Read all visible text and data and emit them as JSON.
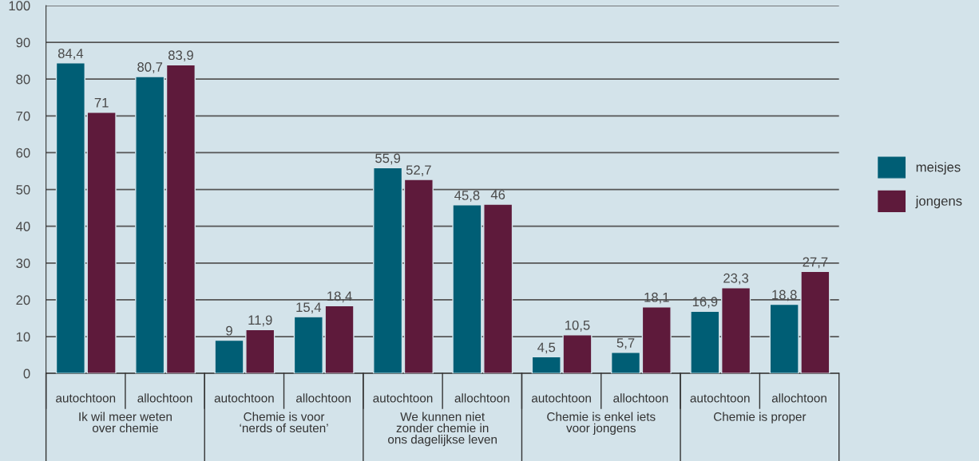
{
  "chart_data": {
    "type": "bar",
    "categories": [
      "autochtoon",
      "allochtoon",
      "autochtoon",
      "allochtoon",
      "autochtoon",
      "allochtoon",
      "autochtoon",
      "allochtoon",
      "autochtoon",
      "allochtoon"
    ],
    "series": [
      {
        "name": "meisjes",
        "color": "#005e75",
        "values": [
          84.4,
          80.7,
          9,
          15.4,
          55.9,
          45.8,
          4.5,
          5.7,
          16.9,
          18.8
        ],
        "value_labels": [
          "84,4",
          "80,7",
          "9",
          "15,4",
          "55,9",
          "45,8",
          "4,5",
          "5,7",
          "16,9",
          "18,8"
        ]
      },
      {
        "name": "jongens",
        "color": "#5e1a3b",
        "values": [
          71,
          83.9,
          11.9,
          18.4,
          52.7,
          46,
          10.5,
          18.1,
          23.3,
          27.7
        ],
        "value_labels": [
          "71",
          "83,9",
          "11,9",
          "18,4",
          "52,7",
          "46",
          "10,5",
          "18,1",
          "23,3",
          "27,7"
        ]
      }
    ],
    "annotations": [
      "Ik wil meer weten\nover chemie",
      "Chemie is voor\n‘nerds of seuten’",
      "We kunnen niet\nzonder chemie in\nons dagelijkse leven",
      "Chemie is enkel iets\nvoor jongens",
      "Chemie is proper"
    ],
    "ylim": [
      0,
      100
    ],
    "yticks": [
      0,
      10,
      20,
      30,
      40,
      50,
      60,
      70,
      80,
      90,
      100
    ],
    "grid": "y",
    "legend": "right"
  }
}
